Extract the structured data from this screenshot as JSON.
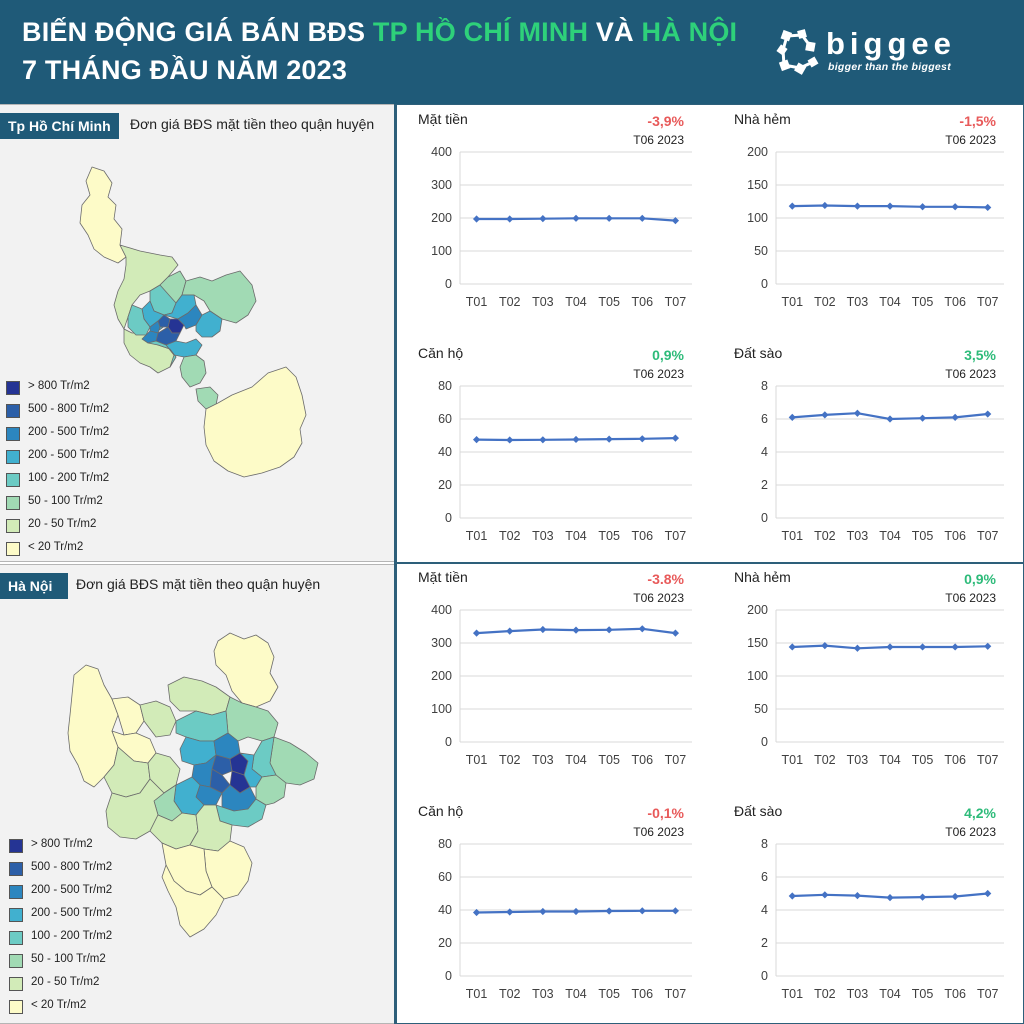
{
  "header": {
    "title_part1": "BIẾN ĐỘNG GIÁ BÁN BĐS ",
    "title_hcm": "TP HỒ CHÍ MINH",
    "title_and": " VÀ ",
    "title_hn": "HÀ NỘI",
    "title_line2": "7 THÁNG ĐẦU NĂM 2023"
  },
  "logo": {
    "wordmark": "biggee",
    "tagline": "bigger than the biggest"
  },
  "colors": {
    "header_bg": "#1f5a78",
    "highlight_green": "#2ed17a",
    "negative_red": "#e85a5a",
    "positive_green": "#2ebb7a",
    "line_blue": "#4472c4"
  },
  "legend": [
    {
      "label": "> 800 Tr/m2",
      "color": "#253494"
    },
    {
      "label": "500 - 800 Tr/m2",
      "color": "#2c5fa8"
    },
    {
      "label": "200 - 500 Tr/m2",
      "color": "#2c86bf"
    },
    {
      "label": "200 - 500 Tr/m2",
      "color": "#41b0cf"
    },
    {
      "label": "100 - 200 Tr/m2",
      "color": "#6ccbc4"
    },
    {
      "label": "50 - 100 Tr/m2",
      "color": "#a1dab4"
    },
    {
      "label": "20 - 50 Tr/m2",
      "color": "#d2ebb8"
    },
    {
      "label": "< 20 Tr/m2",
      "color": "#fdfbc8"
    }
  ],
  "hcm": {
    "tab_label": "Tp Hồ Chí Minh",
    "map_subtitle": "Đơn giá BĐS mặt tiền theo quận huyện"
  },
  "hn": {
    "tab_label": "Hà Nội",
    "map_subtitle": "Đơn giá BĐS mặt tiền theo quận huyện"
  },
  "chart_data": [
    {
      "type": "line",
      "city": "Tp Hồ Chí Minh",
      "title": "Mặt tiền",
      "change": "-3,9%",
      "trend": "down",
      "period": "T06 2023",
      "categories": [
        "T01",
        "T02",
        "T03",
        "T04",
        "T05",
        "T06",
        "T07"
      ],
      "values": [
        197,
        197,
        198,
        199,
        199,
        199,
        192
      ],
      "ylim": [
        0,
        400
      ],
      "yticks": [
        0,
        100,
        200,
        300,
        400
      ]
    },
    {
      "type": "line",
      "city": "Tp Hồ Chí Minh",
      "title": "Nhà hẻm",
      "change": "-1,5%",
      "trend": "down",
      "period": "T06 2023",
      "categories": [
        "T01",
        "T02",
        "T03",
        "T04",
        "T05",
        "T06",
        "T07"
      ],
      "values": [
        118,
        119,
        118,
        118,
        117,
        117,
        116
      ],
      "ylim": [
        0,
        200
      ],
      "yticks": [
        0,
        50,
        100,
        150,
        200
      ]
    },
    {
      "type": "line",
      "city": "Tp Hồ Chí Minh",
      "title": "Căn hộ",
      "change": "0,9%",
      "trend": "up",
      "period": "T06 2023",
      "categories": [
        "T01",
        "T02",
        "T03",
        "T04",
        "T05",
        "T06",
        "T07"
      ],
      "values": [
        47.5,
        47.3,
        47.4,
        47.6,
        47.8,
        48.0,
        48.4
      ],
      "ylim": [
        0,
        80
      ],
      "yticks": [
        0,
        20,
        40,
        60,
        80
      ]
    },
    {
      "type": "line",
      "city": "Tp Hồ Chí Minh",
      "title": "Đất sào",
      "change": "3,5%",
      "trend": "up",
      "period": "T06 2023",
      "categories": [
        "T01",
        "T02",
        "T03",
        "T04",
        "T05",
        "T06",
        "T07"
      ],
      "values": [
        6.1,
        6.25,
        6.35,
        6.0,
        6.05,
        6.1,
        6.3
      ],
      "ylim": [
        0,
        8
      ],
      "yticks": [
        0,
        2,
        4,
        6,
        8
      ]
    },
    {
      "type": "line",
      "city": "Hà Nội",
      "title": "Mặt tiền",
      "change": "-3.8%",
      "trend": "down",
      "period": "T06 2023",
      "categories": [
        "T01",
        "T02",
        "T03",
        "T04",
        "T05",
        "T06",
        "T07"
      ],
      "values": [
        330,
        336,
        341,
        339,
        340,
        343,
        330
      ],
      "ylim": [
        0,
        400
      ],
      "yticks": [
        0,
        100,
        200,
        300,
        400
      ]
    },
    {
      "type": "line",
      "city": "Hà Nội",
      "title": "Nhà hẻm",
      "change": "0,9%",
      "trend": "up",
      "period": "T06 2023",
      "categories": [
        "T01",
        "T02",
        "T03",
        "T04",
        "T05",
        "T06",
        "T07"
      ],
      "values": [
        144,
        146,
        142,
        144,
        144,
        144,
        145
      ],
      "ylim": [
        0,
        200
      ],
      "yticks": [
        0,
        50,
        100,
        150,
        200
      ]
    },
    {
      "type": "line",
      "city": "Hà Nội",
      "title": "Căn hộ",
      "change": "-0,1%",
      "trend": "down",
      "period": "T06 2023",
      "categories": [
        "T01",
        "T02",
        "T03",
        "T04",
        "T05",
        "T06",
        "T07"
      ],
      "values": [
        38.5,
        38.8,
        39.1,
        39.1,
        39.4,
        39.5,
        39.5
      ],
      "ylim": [
        0,
        80
      ],
      "yticks": [
        0,
        20,
        40,
        60,
        80
      ]
    },
    {
      "type": "line",
      "city": "Hà Nội",
      "title": "Đất sào",
      "change": "4,2%",
      "trend": "up",
      "period": "T06 2023",
      "categories": [
        "T01",
        "T02",
        "T03",
        "T04",
        "T05",
        "T06",
        "T07"
      ],
      "values": [
        4.85,
        4.92,
        4.87,
        4.75,
        4.78,
        4.82,
        5.0
      ],
      "ylim": [
        0,
        8
      ],
      "yticks": [
        0,
        2,
        4,
        6,
        8
      ]
    }
  ]
}
